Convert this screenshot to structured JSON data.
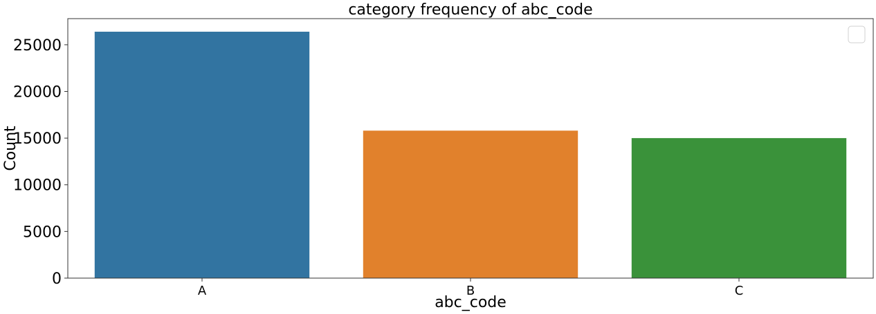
{
  "chart_data": {
    "type": "bar",
    "title": "category frequency of abc_code",
    "xlabel": "abc_code",
    "ylabel": "Count",
    "categories": [
      "A",
      "B",
      "C"
    ],
    "values": [
      26400,
      15800,
      15000
    ],
    "colors": [
      "#3274a1",
      "#e1812c",
      "#3a923a"
    ],
    "ylim": [
      0,
      27800
    ],
    "yticks": [
      0,
      5000,
      10000,
      15000,
      20000,
      25000
    ],
    "grid": false,
    "legend": {
      "placement": "top-right",
      "entries": []
    }
  }
}
